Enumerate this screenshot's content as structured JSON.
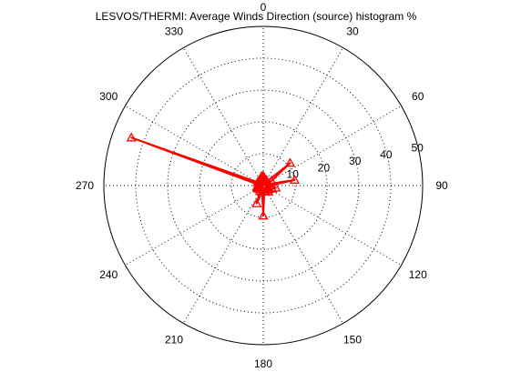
{
  "chart_data": {
    "type": "polar-line",
    "title": "LESVOS/THERMI: Average Winds Direction (source) histogram %",
    "angle_ticks": [
      "0",
      "30",
      "60",
      "90",
      "120",
      "150",
      "180",
      "210",
      "240",
      "270",
      "300",
      "330"
    ],
    "radial_ticks": [
      "10",
      "20",
      "30",
      "40",
      "50"
    ],
    "radial_max": 50,
    "angle_orientation": "clockwise from north (0 at top)",
    "grid": true,
    "series": [
      {
        "marker": "triangle",
        "color": "#ff0000",
        "points": [
          {
            "theta": 0,
            "r": 3
          },
          {
            "theta": 10,
            "r": 2
          },
          {
            "theta": 20,
            "r": 1.5
          },
          {
            "theta": 30,
            "r": 2
          },
          {
            "theta": 40,
            "r": 1.5
          },
          {
            "theta": 50,
            "r": 11
          },
          {
            "theta": 60,
            "r": 3
          },
          {
            "theta": 70,
            "r": 1
          },
          {
            "theta": 80,
            "r": 10
          },
          {
            "theta": 90,
            "r": 2
          },
          {
            "theta": 100,
            "r": 4
          },
          {
            "theta": 110,
            "r": 3
          },
          {
            "theta": 120,
            "r": 2
          },
          {
            "theta": 130,
            "r": 2
          },
          {
            "theta": 140,
            "r": 2.5
          },
          {
            "theta": 150,
            "r": 1.5
          },
          {
            "theta": 160,
            "r": 2
          },
          {
            "theta": 170,
            "r": 2
          },
          {
            "theta": 180,
            "r": 9.5
          },
          {
            "theta": 190,
            "r": 2
          },
          {
            "theta": 200,
            "r": 6
          },
          {
            "theta": 210,
            "r": 2
          },
          {
            "theta": 220,
            "r": 1.5
          },
          {
            "theta": 230,
            "r": 1.5
          },
          {
            "theta": 240,
            "r": 2
          },
          {
            "theta": 250,
            "r": 2
          },
          {
            "theta": 260,
            "r": 2
          },
          {
            "theta": 270,
            "r": 1.5
          },
          {
            "theta": 280,
            "r": 1.5
          },
          {
            "theta": 290,
            "r": 44
          },
          {
            "theta": 300,
            "r": 2
          },
          {
            "theta": 310,
            "r": 2
          },
          {
            "theta": 320,
            "r": 1.5
          },
          {
            "theta": 330,
            "r": 2
          },
          {
            "theta": 340,
            "r": 2
          },
          {
            "theta": 350,
            "r": 3
          },
          {
            "theta": 360,
            "r": 3
          }
        ]
      }
    ]
  }
}
